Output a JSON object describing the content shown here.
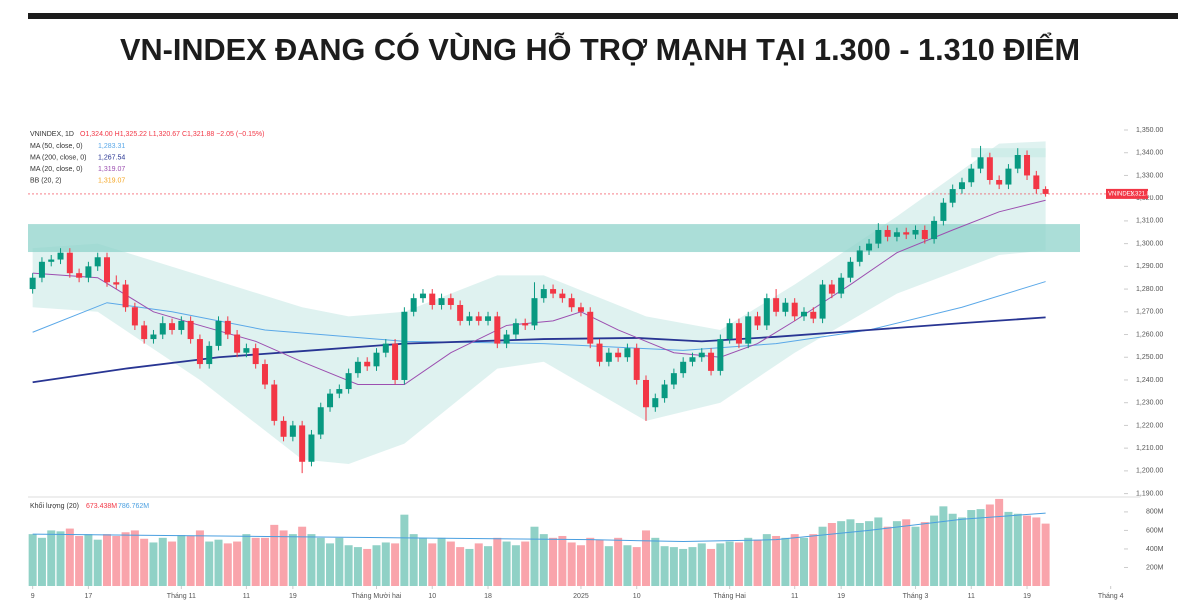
{
  "chart_data": {
    "type": "candlestick",
    "title": "VN-INDEX ĐANG CÓ VÙNG HỖ TRỢ MẠNH TẠI 1.300 - 1.310 ĐIỂM",
    "ohlc_legend": {
      "name": "VNINDEX, 1D",
      "text": "O1,324.00 H1,325.22 L1,320.67 C1,321.88 −2.05 (−0.15%)"
    },
    "up_color": "#089981",
    "down_color": "#f23645",
    "xlim": [
      -0.5,
      112.7
    ],
    "xticks": [
      {
        "value": 0,
        "label": "9"
      },
      {
        "value": 6,
        "label": "17"
      },
      {
        "value": 16,
        "label": "Tháng 11"
      },
      {
        "value": 23,
        "label": "11"
      },
      {
        "value": 28,
        "label": "19"
      },
      {
        "value": 37,
        "label": "Tháng Mười hai"
      },
      {
        "value": 43,
        "label": "10"
      },
      {
        "value": 49,
        "label": "18"
      },
      {
        "value": 59,
        "label": "2025"
      },
      {
        "value": 65,
        "label": "10"
      },
      {
        "value": 75,
        "label": "Tháng Hai"
      },
      {
        "value": 82,
        "label": "11"
      },
      {
        "value": 87,
        "label": "19"
      },
      {
        "value": 95,
        "label": "Tháng 3"
      },
      {
        "value": 101,
        "label": "11"
      },
      {
        "value": 107,
        "label": "19"
      },
      {
        "value": 116,
        "label": "Tháng 4"
      }
    ],
    "ylim": [
      1188.5,
      1354.4
    ],
    "yticks": [
      {
        "value": 1190,
        "label": "1,190.00"
      },
      {
        "value": 1200,
        "label": "1,200.00"
      },
      {
        "value": 1210,
        "label": "1,210.00"
      },
      {
        "value": 1220,
        "label": "1,220.00"
      },
      {
        "value": 1230,
        "label": "1,230.00"
      },
      {
        "value": 1240,
        "label": "1,240.00"
      },
      {
        "value": 1250,
        "label": "1,250.00"
      },
      {
        "value": 1260,
        "label": "1,260.00"
      },
      {
        "value": 1270,
        "label": "1,270.00"
      },
      {
        "value": 1280,
        "label": "1,280.00"
      },
      {
        "value": 1290,
        "label": "1,290.00"
      },
      {
        "value": 1300,
        "label": "1,300.00"
      },
      {
        "value": 1310,
        "label": "1,310.00"
      },
      {
        "value": 1320,
        "label": "1,320.00"
      },
      {
        "value": 1330,
        "label": "1,330.00"
      },
      {
        "value": 1340,
        "label": "1,340.00"
      },
      {
        "value": 1350,
        "label": "1,350.00"
      }
    ],
    "open": [
      1280,
      1285,
      1292,
      1293,
      1296,
      1287,
      1285,
      1290,
      1294,
      1283,
      1282,
      1272,
      1264,
      1258,
      1260,
      1265,
      1262,
      1266,
      1258,
      1247,
      1255,
      1266,
      1260,
      1252,
      1254,
      1247,
      1238,
      1222,
      1215,
      1220,
      1204,
      1216,
      1228,
      1234,
      1236,
      1243,
      1248,
      1246,
      1252,
      1256,
      1240,
      1270,
      1276,
      1278,
      1273,
      1276,
      1273,
      1266,
      1268,
      1266,
      1268,
      1256,
      1260,
      1265,
      1264,
      1276,
      1280,
      1278,
      1276,
      1272,
      1270,
      1256,
      1248,
      1252,
      1250,
      1254,
      1240,
      1228,
      1232,
      1238,
      1243,
      1248,
      1250,
      1252,
      1244,
      1258,
      1265,
      1256,
      1268,
      1264,
      1276,
      1270,
      1274,
      1268,
      1270,
      1267,
      1282,
      1278,
      1285,
      1292,
      1297,
      1300,
      1306,
      1303,
      1305,
      1304,
      1306,
      1302,
      1310,
      1318,
      1324,
      1327,
      1333,
      1338,
      1328,
      1326,
      1333,
      1339,
      1330,
      1324
    ],
    "high": [
      1287,
      1294,
      1295,
      1298,
      1298,
      1289,
      1292,
      1296,
      1296,
      1286,
      1284,
      1274,
      1266,
      1262,
      1268,
      1267,
      1268,
      1268,
      1260,
      1257,
      1268,
      1268,
      1262,
      1256,
      1256,
      1249,
      1240,
      1224,
      1222,
      1222,
      1218,
      1230,
      1236,
      1238,
      1245,
      1250,
      1250,
      1254,
      1258,
      1258,
      1272,
      1278,
      1280,
      1280,
      1278,
      1278,
      1275,
      1270,
      1270,
      1270,
      1270,
      1262,
      1267,
      1267,
      1283,
      1282,
      1282,
      1280,
      1278,
      1274,
      1272,
      1258,
      1254,
      1254,
      1256,
      1256,
      1242,
      1234,
      1240,
      1245,
      1250,
      1252,
      1254,
      1254,
      1260,
      1267,
      1267,
      1270,
      1270,
      1278,
      1280,
      1276,
      1276,
      1272,
      1272,
      1284,
      1284,
      1287,
      1294,
      1299,
      1302,
      1309,
      1308,
      1307,
      1307,
      1308,
      1308,
      1312,
      1320,
      1326,
      1329,
      1335,
      1343,
      1340,
      1330,
      1335,
      1342,
      1341,
      1332,
      1325.22
    ],
    "low": [
      1278,
      1283,
      1290,
      1291,
      1285,
      1283,
      1283,
      1288,
      1281,
      1280,
      1270,
      1262,
      1256,
      1256,
      1258,
      1260,
      1260,
      1256,
      1245,
      1245,
      1253,
      1258,
      1250,
      1250,
      1245,
      1236,
      1220,
      1213,
      1213,
      1199,
      1202,
      1214,
      1226,
      1232,
      1234,
      1241,
      1244,
      1244,
      1250,
      1238,
      1238,
      1268,
      1274,
      1271,
      1271,
      1271,
      1264,
      1264,
      1264,
      1264,
      1254,
      1254,
      1258,
      1262,
      1262,
      1274,
      1276,
      1274,
      1270,
      1268,
      1254,
      1246,
      1246,
      1248,
      1248,
      1238,
      1222,
      1226,
      1230,
      1236,
      1241,
      1246,
      1248,
      1242,
      1242,
      1256,
      1254,
      1254,
      1262,
      1262,
      1268,
      1268,
      1266,
      1266,
      1265,
      1265,
      1276,
      1276,
      1283,
      1290,
      1295,
      1298,
      1301,
      1301,
      1302,
      1302,
      1300,
      1300,
      1308,
      1316,
      1322,
      1325,
      1331,
      1326,
      1324,
      1324,
      1331,
      1328,
      1322,
      1320.67
    ],
    "close": [
      1285,
      1292,
      1293,
      1296,
      1287,
      1285,
      1290,
      1294,
      1283,
      1282,
      1272,
      1264,
      1258,
      1260,
      1265,
      1262,
      1266,
      1258,
      1247,
      1255,
      1266,
      1260,
      1252,
      1254,
      1247,
      1238,
      1222,
      1215,
      1220,
      1204,
      1216,
      1228,
      1234,
      1236,
      1243,
      1248,
      1246,
      1252,
      1256,
      1240,
      1270,
      1276,
      1278,
      1273,
      1276,
      1273,
      1266,
      1268,
      1266,
      1268,
      1256,
      1260,
      1265,
      1264,
      1276,
      1280,
      1278,
      1276,
      1272,
      1270,
      1256,
      1248,
      1252,
      1250,
      1254,
      1240,
      1228,
      1232,
      1238,
      1243,
      1248,
      1250,
      1252,
      1244,
      1258,
      1265,
      1256,
      1268,
      1264,
      1276,
      1270,
      1274,
      1268,
      1270,
      1267,
      1282,
      1278,
      1285,
      1292,
      1297,
      1300,
      1306,
      1303,
      1305,
      1304,
      1306,
      1302,
      1310,
      1318,
      1324,
      1327,
      1333,
      1338,
      1328,
      1326,
      1333,
      1339,
      1330,
      1324,
      1321.88
    ],
    "zones": [
      {
        "ylim": [
          1296.3,
          1308.6
        ],
        "xlim": [
          -0.5,
          112.7
        ],
        "color": "#8fd3cb"
      },
      {
        "ylim": [
          1338,
          1342
        ],
        "xlim": [
          101,
          109
        ],
        "color": "#c9ebe7"
      }
    ],
    "bands": {
      "name": "BB (20, 2)",
      "value_label": "1,319.07",
      "color": "#f5a623",
      "fill": "#d7efec",
      "x": [
        0,
        7,
        18,
        29,
        34,
        40,
        50,
        55,
        66,
        74,
        82,
        93,
        104,
        109
      ],
      "upper": [
        1298,
        1300,
        1286,
        1272,
        1268,
        1270,
        1286,
        1286,
        1268,
        1262,
        1282,
        1312,
        1344,
        1345
      ],
      "lower": [
        1272,
        1270,
        1240,
        1205,
        1203,
        1212,
        1245,
        1248,
        1222,
        1230,
        1252,
        1278,
        1295,
        1297
      ]
    },
    "lines": [
      {
        "name": "MA (50, close, 0)",
        "value_label": "1,283.31",
        "color": "#5aa8e8",
        "width": 1,
        "x": [
          0,
          8,
          15,
          25,
          40,
          55,
          70,
          80,
          90,
          100,
          109
        ],
        "values": [
          1261,
          1274,
          1270,
          1262,
          1257,
          1256,
          1253,
          1256,
          1262,
          1272,
          1283.31
        ]
      },
      {
        "name": "MA (200, close, 0)",
        "value_label": "1,267.54",
        "color": "#283593",
        "width": 1.8,
        "x": [
          0,
          10,
          20,
          30,
          40,
          55,
          65,
          72,
          80,
          90,
          100,
          109
        ],
        "values": [
          1239,
          1245,
          1250,
          1253,
          1256,
          1258,
          1258.5,
          1257,
          1259,
          1262,
          1265,
          1267.54
        ]
      },
      {
        "name": "MA (20, close, 0)",
        "value_label": "1,319.07",
        "color": "#9c4fb0",
        "width": 1,
        "x": [
          0,
          7,
          13,
          18,
          24,
          29,
          35,
          40,
          45,
          51,
          56,
          59,
          63,
          69,
          74,
          78,
          82,
          88,
          93,
          99,
          104,
          109
        ],
        "values": [
          1287,
          1285,
          1270,
          1264,
          1257,
          1248,
          1238,
          1238,
          1252,
          1264,
          1266,
          1270,
          1262,
          1252,
          1250,
          1256,
          1266,
          1282,
          1296,
          1306,
          1314,
          1319.07
        ]
      }
    ],
    "price_label": {
      "name": "VNINDEX",
      "value_label": "1,321.88"
    },
    "volume": {
      "name": "Khối lượng (20)",
      "value_label": "673.438M",
      "ylim": [
        0,
        950
      ],
      "yticks": [
        {
          "value": 200,
          "label": "200M"
        },
        {
          "value": 400,
          "label": "400M"
        },
        {
          "value": 600,
          "label": "600M"
        },
        {
          "value": 800,
          "label": "800M"
        }
      ],
      "values": [
        560,
        520,
        600,
        590,
        620,
        540,
        560,
        500,
        560,
        540,
        580,
        600,
        510,
        470,
        520,
        480,
        550,
        540,
        600,
        480,
        500,
        460,
        480,
        560,
        520,
        520,
        660,
        600,
        560,
        640,
        560,
        520,
        460,
        520,
        440,
        420,
        400,
        440,
        470,
        460,
        770,
        560,
        520,
        460,
        520,
        480,
        420,
        400,
        460,
        430,
        520,
        480,
        440,
        480,
        640,
        560,
        520,
        540,
        470,
        440,
        520,
        500,
        430,
        520,
        440,
        420,
        600,
        520,
        430,
        420,
        400,
        420,
        460,
        400,
        460,
        480,
        470,
        520,
        500,
        560,
        540,
        520,
        560,
        520,
        560,
        640,
        680,
        700,
        720,
        680,
        700,
        740,
        640,
        700,
        720,
        640,
        690,
        760,
        860,
        780,
        740,
        820,
        830,
        880,
        940,
        800,
        780,
        760,
        740,
        673.438
      ],
      "ma": {
        "value_label": "786.762M",
        "color": "#4a9fe0",
        "x": [
          0,
          20,
          40,
          60,
          70,
          80,
          90,
          100,
          109
        ],
        "values": [
          560,
          540,
          520,
          500,
          480,
          500,
          600,
          720,
          786.762
        ]
      }
    }
  }
}
